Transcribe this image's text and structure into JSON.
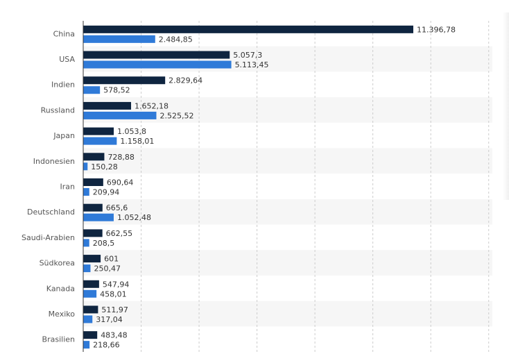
{
  "colors": {
    "series_1": "#0f2540",
    "series_2": "#2f7ad8",
    "band": "#f6f6f6",
    "grid": "#cccccc",
    "axis": "#333333"
  },
  "chart_data": {
    "type": "bar",
    "orientation": "horizontal",
    "categories": [
      "China",
      "USA",
      "Indien",
      "Russland",
      "Japan",
      "Indonesien",
      "Iran",
      "Deutschland",
      "Saudi-Arabien",
      "Südkorea",
      "Kanada",
      "Mexiko",
      "Brasilien"
    ],
    "series": [
      {
        "values": [
          11396.78,
          5057.3,
          2829.64,
          1652.18,
          1053.8,
          728.88,
          690.64,
          665.6,
          662.55,
          601,
          547.94,
          511.97,
          483.48
        ],
        "labels": [
          "11.396,78",
          "5.057,3",
          "2.829,64",
          "1.652,18",
          "1.053,8",
          "728,88",
          "690,64",
          "665,6",
          "662,55",
          "601",
          "547,94",
          "511,97",
          "483,48"
        ]
      },
      {
        "values": [
          2484.85,
          5113.45,
          578.52,
          2525.52,
          1158.01,
          150.28,
          209.94,
          1052.48,
          208.5,
          250.47,
          458.01,
          317.04,
          218.66
        ],
        "labels": [
          "2.484,85",
          "5.113,45",
          "578,52",
          "2.525,52",
          "1.158,01",
          "150,28",
          "209,94",
          "1.052,48",
          "208,5",
          "250,47",
          "458,01",
          "317,04",
          "218,66"
        ]
      }
    ],
    "xlim": [
      0,
      14000
    ],
    "grid_step": 2000,
    "grid": true,
    "alternating_bands": true,
    "legend": "none",
    "title": "",
    "xlabel": "",
    "ylabel": ""
  }
}
